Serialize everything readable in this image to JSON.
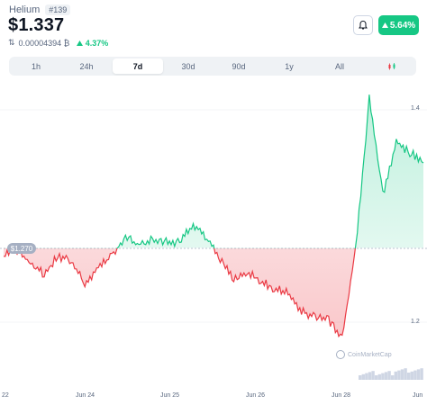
{
  "coin": {
    "name": "Helium",
    "rank": "#139",
    "price": "$1.337",
    "btc_price": "0.00004394 ₿",
    "btc_change": "4.37%",
    "price_change": "5.64%"
  },
  "tabs": [
    {
      "label": "1h",
      "active": false
    },
    {
      "label": "24h",
      "active": false
    },
    {
      "label": "7d",
      "active": true
    },
    {
      "label": "30d",
      "active": false
    },
    {
      "label": "90d",
      "active": false
    },
    {
      "label": "1y",
      "active": false
    },
    {
      "label": "All",
      "active": false
    }
  ],
  "colors": {
    "up": "#16c784",
    "down": "#ea3943",
    "reference": "#a6b0c3"
  },
  "icons": {
    "bell": "bell-icon",
    "swap": "swap-icon",
    "up_caret": "caret-up-icon",
    "candle": "candlestick-icon"
  },
  "chart": {
    "reference_label": "$1.270",
    "y_ticks": [
      "1.4",
      "1.2"
    ],
    "x_ticks": [
      "22",
      "Jun 24",
      "Jun 25",
      "Jun 26",
      "Jun 28",
      "Jun"
    ],
    "watermark": "CoinMarketCap"
  },
  "chart_data": {
    "type": "line",
    "reference_value": 1.27,
    "ylim": [
      1.18,
      1.42
    ],
    "x": [
      "Jun 22",
      "Jun 22",
      "Jun 23",
      "Jun 23",
      "Jun 23",
      "Jun 23",
      "Jun 24",
      "Jun 24",
      "Jun 24",
      "Jun 24",
      "Jun 24",
      "Jun 25",
      "Jun 25",
      "Jun 25",
      "Jun 25",
      "Jun 25",
      "Jun 26",
      "Jun 26",
      "Jun 26",
      "Jun 26",
      "Jun 27",
      "Jun 27",
      "Jun 27",
      "Jun 27",
      "Jun 27",
      "Jun 28",
      "Jun 28",
      "Jun 28",
      "Jun 28",
      "Jun 28",
      "Jun 29",
      "Jun 29"
    ],
    "values": [
      1.262,
      1.268,
      1.255,
      1.245,
      1.262,
      1.258,
      1.236,
      1.252,
      1.262,
      1.28,
      1.273,
      1.278,
      1.276,
      1.275,
      1.292,
      1.28,
      1.26,
      1.24,
      1.248,
      1.238,
      1.232,
      1.228,
      1.21,
      1.205,
      1.202,
      1.185,
      1.27,
      1.41,
      1.32,
      1.37,
      1.36,
      1.35
    ],
    "xlabel": "",
    "ylabel": ""
  }
}
